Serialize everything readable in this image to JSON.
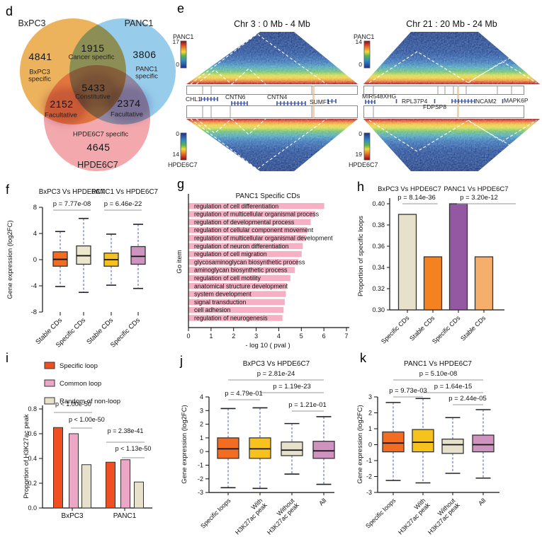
{
  "figure": {
    "labels": {
      "d": "d",
      "e": "e",
      "f": "f",
      "g": "g",
      "h": "h",
      "i": "i",
      "j": "j",
      "k": "k"
    }
  },
  "panel_d": {
    "type": "venn3",
    "sets": [
      {
        "name": "BxPC3",
        "color": "#ECB25C"
      },
      {
        "name": "PANC1",
        "color": "#97CDEB"
      },
      {
        "name": "HPDE6C7",
        "color": "#F3A8AD"
      }
    ],
    "regions": [
      {
        "value": "4841",
        "lines": [
          "BxPC3",
          "specific"
        ]
      },
      {
        "value": "1915",
        "lines": [
          "Cancer specific"
        ]
      },
      {
        "value": "3806",
        "lines": [
          "PANC1",
          "specific"
        ]
      },
      {
        "value": "5433",
        "lines": [
          "Constitutive"
        ]
      },
      {
        "value": "2152",
        "lines": [
          "Facultative"
        ]
      },
      {
        "value": "2374",
        "lines": [
          "Facultative"
        ]
      },
      {
        "value": "4645",
        "lines": [
          "HPDE6C7 specific"
        ]
      }
    ]
  },
  "panel_e": {
    "maps": [
      {
        "title": "Chr 3 : 0 Mb - 4 Mb",
        "top_sample": "PANC1",
        "top_max": "17",
        "top_min": "0",
        "bottom_min": "0",
        "bottom_max": "14",
        "bottom_sample": "HPDE6C7",
        "genes": [
          "CHL1",
          "CNTN6",
          "CNTN4",
          "SUMF1"
        ]
      },
      {
        "title": "Chr 21 : 20 Mb - 24 Mb",
        "top_sample": "PANC1",
        "top_max": "14",
        "top_min": "0",
        "bottom_min": "0",
        "bottom_max": "19",
        "bottom_sample": "HPDE6C7",
        "genes": [
          "MIR548XHG",
          "RPL37P4",
          "FDPSP8",
          "NCAM2",
          "MAPK6P"
        ]
      }
    ]
  },
  "chart_data": [
    {
      "id": "f",
      "type": "boxplot",
      "groups": [
        {
          "title": "BxPC3 Vs HPDE6C7",
          "pvalue": "p = 7.77e-08"
        },
        {
          "title": "PANC1 Vs HPDE6C7",
          "pvalue": "p = 6.46e-22"
        }
      ],
      "ylabel": "Gene expression (log2FC)",
      "ylim": [
        -8,
        8
      ],
      "yticks": [
        8,
        4,
        0,
        -4,
        -8
      ],
      "categories": [
        "Stable CDs",
        "Specific CDs",
        "Stable CDs",
        "Specific CDs"
      ],
      "boxes": [
        {
          "color": "#F26D21",
          "lo": -4.1,
          "q1": -1.0,
          "med": 0.05,
          "q3": 1.2,
          "hi": 4.3
        },
        {
          "color": "#EDE6CE",
          "lo": -5.0,
          "q1": -0.7,
          "med": 0.6,
          "q3": 2.1,
          "hi": 6.3
        },
        {
          "color": "#F6C21D",
          "lo": -3.9,
          "q1": -1.0,
          "med": 0.0,
          "q3": 1.0,
          "hi": 3.9
        },
        {
          "color": "#CE93BF",
          "lo": -4.4,
          "q1": -0.7,
          "med": 0.5,
          "q3": 2.0,
          "hi": 5.4
        }
      ]
    },
    {
      "id": "g",
      "type": "barh",
      "title": "PANC1 Specific CDs",
      "xlabel": "- log 10 ( pval )",
      "ylabel": "Go item",
      "xlim": [
        0,
        7
      ],
      "xticks": [
        0,
        1,
        2,
        3,
        4,
        5,
        6,
        7
      ],
      "bar_color": "#F5B0C3",
      "items": [
        [
          "regulation of cell differentiation",
          6.0
        ],
        [
          "regulation of multicellular organismal process",
          5.6
        ],
        [
          "regulation of developmental process",
          5.4
        ],
        [
          "regulation of cellular component movement",
          5.25
        ],
        [
          "regulation of multicellular organismal development",
          5.2
        ],
        [
          "regulation of neuron differentiation",
          5.05
        ],
        [
          "regulation of cell migration",
          5.0
        ],
        [
          "glycosaminoglycan biosynthetic process",
          4.85
        ],
        [
          "aminoglycan biosynthetic process",
          4.7
        ],
        [
          "regulation of cell motility",
          4.5
        ],
        [
          "anatomical structure development",
          4.35
        ],
        [
          "system development",
          4.3
        ],
        [
          "signal transduction",
          4.25
        ],
        [
          "cell adhesion",
          4.2
        ],
        [
          "regulation of neurogenesis",
          4.15
        ]
      ]
    },
    {
      "id": "h",
      "type": "bar",
      "groups": [
        {
          "title": "BxPC3 Vs HPDE6C7",
          "pvalue": "p = 8.14e-36"
        },
        {
          "title": "PANC1 Vs HPDE6C7",
          "pvalue": "p = 3.20e-12"
        }
      ],
      "ylabel": "Proportion of specific loops",
      "ylim": [
        0.3,
        0.4
      ],
      "yticks": [
        0.4,
        0.38,
        0.36,
        0.34,
        0.32,
        0.3
      ],
      "categories": [
        "Specific CDs",
        "Stable CDs",
        "Specific CDs",
        "Stable CDs"
      ],
      "values": [
        0.39,
        0.35,
        0.4,
        0.35
      ],
      "colors": [
        "#E7E1CB",
        "#F58220",
        "#9457A2",
        "#F5AE6B"
      ]
    },
    {
      "id": "i",
      "type": "grouped_bar",
      "legend": [
        {
          "label": "Specific loop",
          "color": "#F04F23"
        },
        {
          "label": "Common loop",
          "color": "#ECA7C6"
        },
        {
          "label": "Random of non-loop",
          "color": "#E7E1CB"
        }
      ],
      "ylabel": "Proportion of H3K27ac peak",
      "ylim": [
        0,
        0.8
      ],
      "yticks": [
        0.8,
        0.6,
        0.4,
        0.2,
        0.0
      ],
      "groups": [
        {
          "label": "BxPC3",
          "values": [
            0.65,
            0.6,
            0.35
          ],
          "pvalues": [
            "p < 1.00e-50",
            "p < 1.00e-50"
          ]
        },
        {
          "label": "PANC1",
          "values": [
            0.37,
            0.39,
            0.21
          ],
          "pvalues": [
            "p = 2.38e-41",
            "p < 1.13e-50"
          ]
        }
      ]
    },
    {
      "id": "j",
      "type": "boxplot",
      "title": "BxPC3 Vs HPDE6C7",
      "pvalues": [
        {
          "label": "p = 2.81e-24",
          "from": 0,
          "to": 3
        },
        {
          "label": "p = 1.19e-23",
          "from": 1,
          "to": 3
        },
        {
          "label": "p = 4.79e-01",
          "from": 0,
          "to": 1
        },
        {
          "label": "p = 1.21e-01",
          "from": 2,
          "to": 3
        }
      ],
      "ylabel": "Gene expression (log2FC)",
      "ylim": [
        -3,
        4
      ],
      "yticks": [
        4,
        3,
        2,
        1,
        0,
        -1,
        -2,
        -3
      ],
      "categories": [
        [
          "Specific loops"
        ],
        [
          "With",
          "H3K27ac peak"
        ],
        [
          "Without",
          "H3K27ac peak"
        ],
        [
          "All"
        ]
      ],
      "boxes": [
        {
          "color": "#F26D21",
          "lo": -2.65,
          "q1": -0.5,
          "med": 0.2,
          "q3": 1.0,
          "hi": 3.15
        },
        {
          "color": "#F6C21D",
          "lo": -2.7,
          "q1": -0.5,
          "med": 0.2,
          "q3": 1.0,
          "hi": 3.2
        },
        {
          "color": "#E7E1CB",
          "lo": -1.65,
          "q1": -0.3,
          "med": 0.1,
          "q3": 0.7,
          "hi": 2.05
        },
        {
          "color": "#CE93BF",
          "lo": -2.4,
          "q1": -0.5,
          "med": 0.05,
          "q3": 0.75,
          "hi": 2.55
        }
      ]
    },
    {
      "id": "k",
      "type": "boxplot",
      "title": "PANC1 Vs HPDE6C7",
      "pvalues": [
        {
          "label": "p = 5.10e-08",
          "from": 0,
          "to": 3
        },
        {
          "label": "p = 1.64e-15",
          "from": 1,
          "to": 3
        },
        {
          "label": "p = 9.73e-03",
          "from": 0,
          "to": 1
        },
        {
          "label": "p = 2.44e-05",
          "from": 2,
          "to": 3
        }
      ],
      "ylabel": "Gene expression (log2FC)",
      "ylim": [
        -3,
        3
      ],
      "yticks": [
        3,
        2,
        1,
        0,
        -1,
        -2,
        -3
      ],
      "categories": [
        [
          "Specific loops"
        ],
        [
          "With",
          "H3K27ac peak"
        ],
        [
          "Without",
          "H3K27ac peak"
        ],
        [
          "All"
        ]
      ],
      "boxes": [
        {
          "color": "#F26D21",
          "lo": -2.25,
          "q1": -0.45,
          "med": 0.1,
          "q3": 0.8,
          "hi": 2.65
        },
        {
          "color": "#F6C21D",
          "lo": -2.4,
          "q1": -0.45,
          "med": 0.15,
          "q3": 0.95,
          "hi": 2.9
        },
        {
          "color": "#E7E1CB",
          "lo": -1.8,
          "q1": -0.55,
          "med": 0.0,
          "q3": 0.35,
          "hi": 1.7
        },
        {
          "color": "#CE93BF",
          "lo": -2.1,
          "q1": -0.45,
          "med": 0.0,
          "q3": 0.6,
          "hi": 2.2
        }
      ]
    }
  ]
}
